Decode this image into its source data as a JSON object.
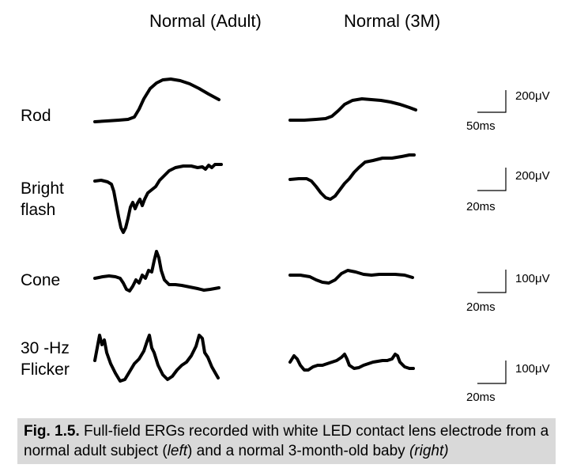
{
  "columns": {
    "left_title": "Normal (Adult)",
    "right_title": "Normal (3M)"
  },
  "rows": {
    "rod": {
      "label": "Rod"
    },
    "bright": {
      "label_line1": "Bright",
      "label_line2": "flash"
    },
    "cone": {
      "label": "Cone"
    },
    "flicker": {
      "label_line1": "30 -Hz",
      "label_line2": "Flicker"
    }
  },
  "scale_bars": {
    "rod": {
      "amplitude": "200μV",
      "time": "50ms"
    },
    "bright": {
      "amplitude": "200μV",
      "time": "20ms"
    },
    "cone": {
      "amplitude": "100μV",
      "time": "20ms"
    },
    "flicker": {
      "amplitude": "100μV",
      "time": "20ms"
    }
  },
  "caption": {
    "fig_num": "Fig. 1.5.",
    "text_a": " Full-field ERGs recorded with white LED contact lens electrode from a normal adult subject (",
    "left_word": "left",
    "text_b": ") and a normal 3-month-old baby ",
    "right_word": "(right)"
  }
}
